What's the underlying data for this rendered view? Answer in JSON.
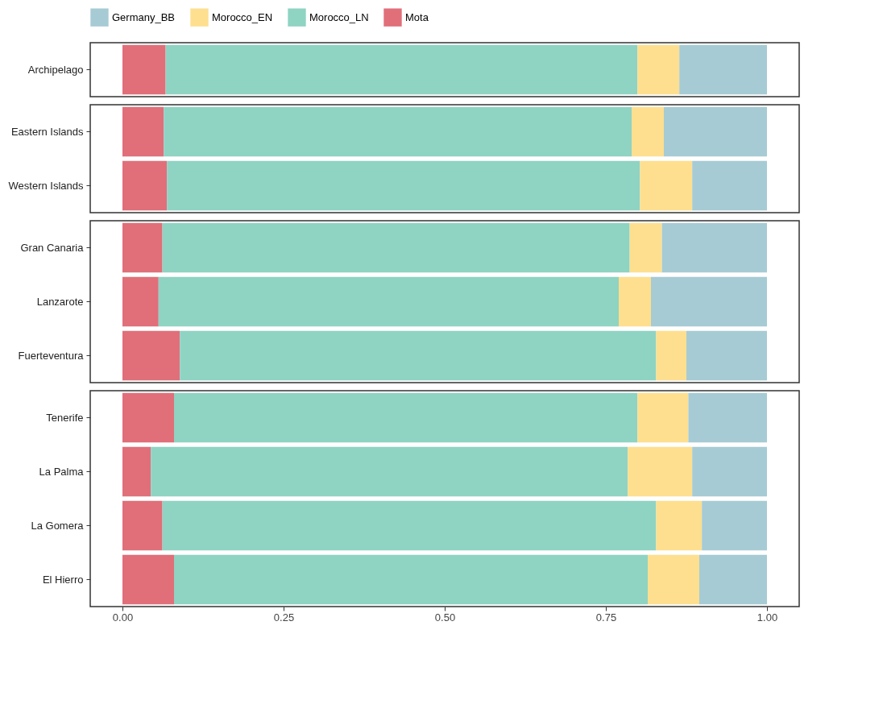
{
  "chart_data": [
    {
      "type": "bar",
      "orientation": "horizontal",
      "stacked": true,
      "legend": "top",
      "grid": false,
      "tick_labels": "y",
      "xlim": [
        -0.05,
        1.05
      ],
      "categories": [
        "Archipelago"
      ],
      "series": [
        {
          "name": "Mota",
          "color": "#e06f7a",
          "values": [
            0.067
          ]
        },
        {
          "name": "Morocco_LN",
          "color": "#8fd3c3",
          "values": [
            0.732
          ]
        },
        {
          "name": "Morocco_EN",
          "color": "#fddf8f",
          "values": [
            0.065
          ]
        },
        {
          "name": "Germany_BB",
          "color": "#a6cbd4",
          "values": [
            0.136
          ]
        }
      ]
    },
    {
      "type": "bar",
      "orientation": "horizontal",
      "stacked": true,
      "grid": false,
      "tick_labels": "y",
      "xlim": [
        -0.05,
        1.05
      ],
      "categories": [
        "Eastern Islands",
        "Western Islands"
      ],
      "series": [
        {
          "color": "#e06f7a",
          "values": [
            0.064,
            0.069
          ]
        },
        {
          "color": "#8fd3c3",
          "values": [
            0.726,
            0.734
          ]
        },
        {
          "color": "#fddf8f",
          "values": [
            0.05,
            0.081
          ]
        },
        {
          "color": "#a6cbd4",
          "values": [
            0.16,
            0.116
          ]
        }
      ]
    },
    {
      "type": "bar",
      "orientation": "horizontal",
      "stacked": true,
      "grid": false,
      "tick_labels": "y",
      "xlim": [
        -0.05,
        1.05
      ],
      "categories": [
        "Gran Canaria",
        "Lanzarote",
        "Fuerteventura"
      ],
      "series": [
        {
          "color": "#e06f7a",
          "values": [
            0.062,
            0.056,
            0.089
          ]
        },
        {
          "color": "#8fd3c3",
          "values": [
            0.725,
            0.714,
            0.739
          ]
        },
        {
          "color": "#fddf8f",
          "values": [
            0.05,
            0.05,
            0.047
          ]
        },
        {
          "color": "#a6cbd4",
          "values": [
            0.163,
            0.18,
            0.125
          ]
        }
      ]
    },
    {
      "type": "bar",
      "orientation": "horizontal",
      "stacked": true,
      "grid": false,
      "xlim": [
        -0.05,
        1.05
      ],
      "xticks": [
        {
          "value": 0,
          "label": "0.00"
        },
        {
          "value": 0.25,
          "label": "0.25"
        },
        {
          "value": 0.5,
          "label": "0.50"
        },
        {
          "value": 0.75,
          "label": "0.75"
        },
        {
          "value": 1,
          "label": "1.00"
        }
      ],
      "categories": [
        "Tenerife",
        "La Palma",
        "La Gomera",
        "El Hierro"
      ],
      "series": [
        {
          "color": "#e06f7a",
          "values": [
            0.08,
            0.044,
            0.062,
            0.08
          ]
        },
        {
          "color": "#8fd3c3",
          "values": [
            0.719,
            0.74,
            0.766,
            0.735
          ]
        },
        {
          "color": "#fddf8f",
          "values": [
            0.079,
            0.1,
            0.071,
            0.08
          ]
        },
        {
          "color": "#a6cbd4",
          "values": [
            0.122,
            0.116,
            0.101,
            0.105
          ]
        }
      ]
    }
  ]
}
